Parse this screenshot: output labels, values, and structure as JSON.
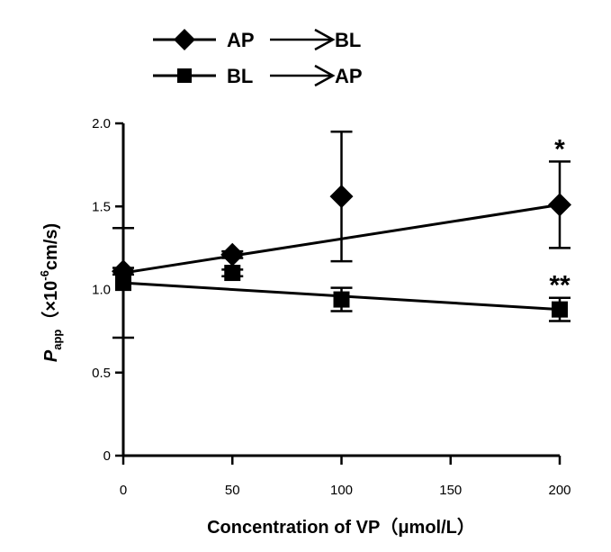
{
  "chart_data": {
    "type": "line",
    "title": "",
    "xlabel": "Concentration of VP（μmol/L）",
    "ylabel": {
      "symbol": "P",
      "subscript": "app",
      "unit_open": "（×10",
      "exponent": "-6",
      "unit_close": "cm/s)"
    },
    "xlim": [
      0,
      200
    ],
    "ylim": [
      0,
      2.0
    ],
    "x_ticks": [
      "0",
      "50",
      "100",
      "150",
      "200"
    ],
    "y_ticks": [
      "0",
      "0.5",
      "1.0",
      "1.5",
      "2.0"
    ],
    "x_tick_values": [
      0,
      50,
      100,
      150,
      200
    ],
    "y_tick_values": [
      0,
      0.5,
      1.0,
      1.5,
      2.0
    ],
    "grid": false,
    "legend_position": "top-left",
    "series": [
      {
        "name": "AP → BL",
        "name_parts": [
          "AP",
          "BL"
        ],
        "marker": "diamond",
        "x": [
          0,
          50,
          100,
          200
        ],
        "y": [
          1.11,
          1.21,
          1.56,
          1.51
        ],
        "error": [
          0.02,
          0.02,
          0.39,
          0.26
        ],
        "trendline": {
          "x": [
            0,
            200
          ],
          "y": [
            1.1,
            1.51
          ]
        },
        "annotation": {
          "x": 200,
          "text": "*"
        }
      },
      {
        "name": "BL → AP",
        "name_parts": [
          "BL",
          "AP"
        ],
        "marker": "square",
        "x": [
          0,
          50,
          100,
          200
        ],
        "y": [
          1.04,
          1.1,
          0.94,
          0.88
        ],
        "error": [
          0.33,
          0.02,
          0.07,
          0.07
        ],
        "trendline": {
          "x": [
            0,
            200
          ],
          "y": [
            1.04,
            0.88
          ]
        },
        "annotation": {
          "x": 200,
          "text": "**"
        }
      }
    ]
  }
}
